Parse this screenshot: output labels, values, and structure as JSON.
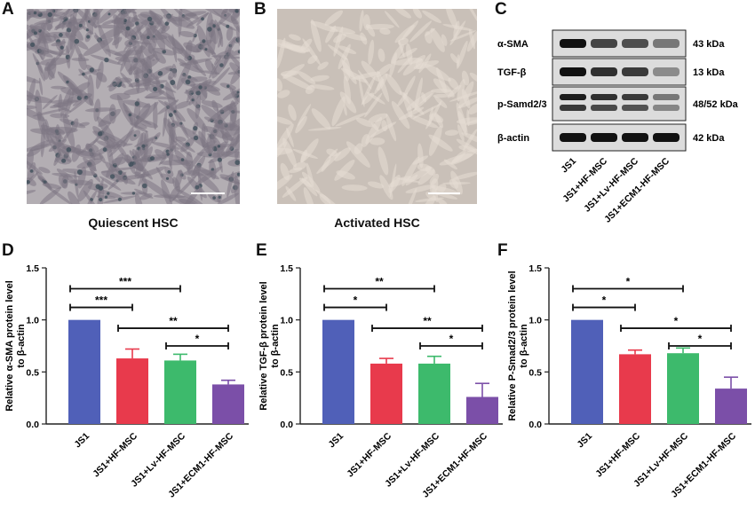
{
  "panels": {
    "A": "A",
    "B": "B",
    "C": "C",
    "D": "D",
    "E": "E",
    "F": "F"
  },
  "captions": {
    "quiescent": "Quiescent HSC",
    "activated": "Activated HSC"
  },
  "western_blot": {
    "rows": [
      {
        "name": "α-SMA",
        "size": "43 kDa"
      },
      {
        "name": "TGF-β",
        "size": "13 kDa"
      },
      {
        "name": "p-Samd2/3",
        "size": "48/52 kDa"
      },
      {
        "name": "β-actin",
        "size": "42 kDa"
      }
    ],
    "lanes": [
      "JS1",
      "JS1+HF-MSC",
      "JS1+Lv-HF-MSC",
      "JS1+ECM1-HF-MSC"
    ]
  },
  "colors": {
    "JS1": "#5060b8",
    "JS1+HF-MSC": "#e83a4c",
    "JS1+Lv-HF-MSC": "#3dba6c",
    "JS1+ECM1-HF-MSC": "#7b4fa8",
    "quiescent_bg": "#b3aeb3",
    "activated_bg": "#c9c0b8"
  },
  "chart_data": [
    {
      "type": "bar",
      "panel": "D",
      "categories": [
        "JS1",
        "JS1+HF-MSC",
        "JS1+Lv-HF-MSC",
        "JS1+ECM1-HF-MSC"
      ],
      "values": [
        1.0,
        0.63,
        0.61,
        0.38
      ],
      "errors": [
        0,
        0.09,
        0.06,
        0.04
      ],
      "ylabel_line1": "Relative α-SMA protein level",
      "ylabel_line2": "to β-actin",
      "ylim": [
        0,
        1.5
      ],
      "yticks": [
        "0.0",
        "0.5",
        "1.0",
        "1.5"
      ],
      "significance": [
        {
          "from": 0,
          "to": 1,
          "label": "***"
        },
        {
          "from": 0,
          "to": 2,
          "label": "***"
        },
        {
          "from": 1,
          "to": 3,
          "label": "**"
        },
        {
          "from": 2,
          "to": 3,
          "label": "*"
        }
      ]
    },
    {
      "type": "bar",
      "panel": "E",
      "categories": [
        "JS1",
        "JS1+HF-MSC",
        "JS1+Lv-HF-MSC",
        "JS1+ECM1-HF-MSC"
      ],
      "values": [
        1.0,
        0.58,
        0.58,
        0.26
      ],
      "errors": [
        0,
        0.05,
        0.07,
        0.13
      ],
      "ylabel_line1": "Relative TGF-β protein level",
      "ylabel_line2": "to β-actin",
      "ylim": [
        0,
        1.5
      ],
      "yticks": [
        "0.0",
        "0.5",
        "1.0",
        "1.5"
      ],
      "significance": [
        {
          "from": 0,
          "to": 1,
          "label": "*"
        },
        {
          "from": 0,
          "to": 2,
          "label": "**"
        },
        {
          "from": 1,
          "to": 3,
          "label": "**"
        },
        {
          "from": 2,
          "to": 3,
          "label": "*"
        }
      ]
    },
    {
      "type": "bar",
      "panel": "F",
      "categories": [
        "JS1",
        "JS1+HF-MSC",
        "JS1+Lv-HF-MSC",
        "JS1+ECM1-HF-MSC"
      ],
      "values": [
        1.0,
        0.67,
        0.68,
        0.34
      ],
      "errors": [
        0,
        0.04,
        0.05,
        0.11
      ],
      "ylabel_line1": "Relative P-Smad2/3 protein level",
      "ylabel_line2": "to β-actin",
      "ylim": [
        0,
        1.5
      ],
      "yticks": [
        "0.0",
        "0.5",
        "1.0",
        "1.5"
      ],
      "significance": [
        {
          "from": 0,
          "to": 1,
          "label": "*"
        },
        {
          "from": 0,
          "to": 2,
          "label": "*"
        },
        {
          "from": 1,
          "to": 3,
          "label": "*"
        },
        {
          "from": 2,
          "to": 3,
          "label": "*"
        }
      ]
    }
  ]
}
